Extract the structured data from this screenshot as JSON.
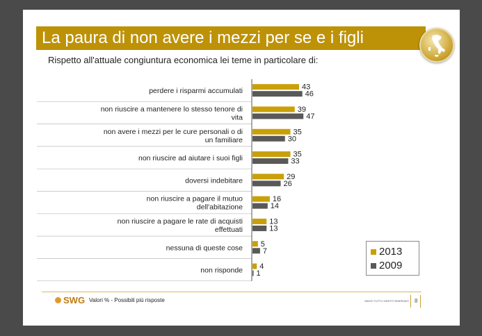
{
  "title": "La paura di non avere i mezzi per se e i figli",
  "subtitle": "Rispetto all'attuale congiuntura economica lei teme in particolare di:",
  "colors": {
    "series_2013": "#c9a007",
    "series_2009": "#595959",
    "title_bar": "#bd9207"
  },
  "chart_data": {
    "type": "bar",
    "orientation": "horizontal",
    "categories": [
      [
        "perdere i risparmi accumulati"
      ],
      [
        "non riuscire a mantenere lo stesso tenore di",
        "vita"
      ],
      [
        "non avere i mezzi per le cure personali o di",
        "un familiare"
      ],
      [
        "non riuscire ad aiutare i suoi figli"
      ],
      [
        "doversi indebitare"
      ],
      [
        "non riuscire a pagare il mutuo",
        "dell'abitazione"
      ],
      [
        "non riuscire a pagare le rate di acquisti",
        "effettuati"
      ],
      [
        "nessuna di queste cose"
      ],
      [
        "non risponde"
      ]
    ],
    "series": [
      {
        "name": "2013",
        "values": [
          43,
          39,
          35,
          35,
          29,
          16,
          13,
          5,
          4
        ]
      },
      {
        "name": "2009",
        "values": [
          46,
          47,
          30,
          33,
          26,
          14,
          13,
          7,
          1
        ]
      }
    ],
    "xlim": [
      0,
      100
    ]
  },
  "footer": {
    "logo": "SWG",
    "note": "Valori % - Possibili più risposte",
    "rights": "SWG© TUTTI I DIRITTI RISERVATI",
    "page": "8"
  }
}
